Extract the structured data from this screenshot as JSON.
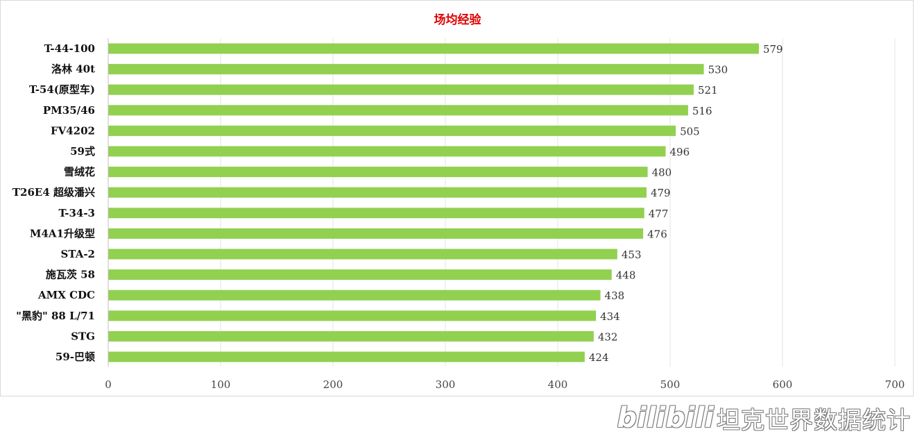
{
  "chart_data": {
    "type": "bar",
    "orientation": "horizontal",
    "title": "场均经验",
    "categories": [
      "T-44-100",
      "洛林 40t",
      "T-54(原型车)",
      "PM35/46",
      "FV4202",
      "59式",
      "雪绒花",
      "T26E4 超级潘兴",
      "T-34-3",
      "M4A1升级型",
      "STA-2",
      "施瓦茨 58",
      "AMX CDC",
      "\"黑豹\" 88 L/71",
      "STG",
      "59-巴顿"
    ],
    "values": [
      579,
      530,
      521,
      516,
      505,
      496,
      480,
      479,
      477,
      476,
      453,
      448,
      438,
      434,
      432,
      424
    ],
    "xlim": [
      0,
      700
    ],
    "xticks": [
      0,
      100,
      200,
      300,
      400,
      500,
      600,
      700
    ],
    "grid": true,
    "bar_color": "#92d050",
    "title_color": "#e00000"
  },
  "watermark": {
    "logo": "bilibili",
    "text": "坦克世界数据统计"
  }
}
